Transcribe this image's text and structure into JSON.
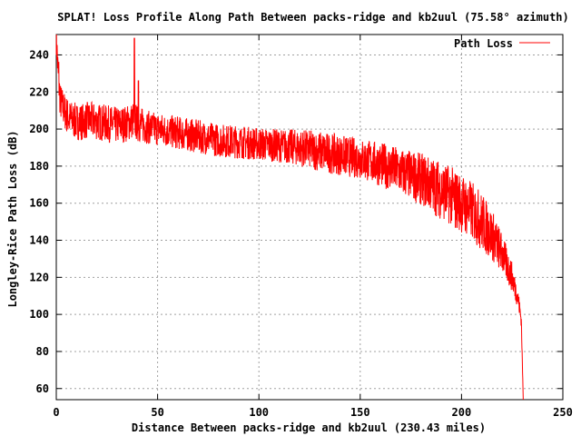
{
  "chart_data": {
    "type": "line",
    "title": "SPLAT! Loss Profile Along Path Between packs-ridge and kb2uul (75.58° azimuth)",
    "xlabel": "Distance Between packs-ridge and kb2uul (230.43 miles)",
    "ylabel": "Longley-Rice Path Loss (dB)",
    "xlim": [
      0,
      250
    ],
    "ylim": [
      54,
      251
    ],
    "x_ticks": [
      "0",
      "50",
      "100",
      "150",
      "200",
      "250"
    ],
    "y_ticks": [
      "60",
      "80",
      "100",
      "120",
      "140",
      "160",
      "180",
      "200",
      "220",
      "240"
    ],
    "grid": true,
    "legend_position": "top-right",
    "series": [
      {
        "name": "Path Loss",
        "color": "#ff0000",
        "x": [
          0,
          1,
          2,
          4,
          6,
          8,
          10,
          13,
          16,
          20,
          25,
          30,
          35,
          38,
          40,
          45,
          50,
          55,
          60,
          65,
          70,
          80,
          90,
          100,
          110,
          120,
          130,
          140,
          150,
          160,
          170,
          180,
          185,
          190,
          195,
          200,
          205,
          210,
          215,
          220,
          225,
          228,
          229.5,
          230.43
        ],
        "y": [
          250,
          228,
          215,
          210,
          206,
          205,
          204,
          204,
          205,
          204,
          203,
          202,
          203,
          205,
          203,
          201,
          200,
          199,
          198,
          197,
          196,
          194,
          193,
          192,
          191,
          190,
          188,
          186,
          184,
          181,
          177,
          173,
          170,
          167,
          164,
          160,
          156,
          150,
          143,
          133,
          120,
          108,
          97,
          55
        ],
        "noise": [
          10,
          10,
          10,
          10,
          10,
          10,
          10,
          10,
          10,
          10,
          10,
          10,
          10,
          10,
          10,
          9,
          9,
          9,
          9,
          9,
          9,
          9,
          9,
          9,
          9,
          10,
          11,
          11,
          11,
          12,
          13,
          14,
          15,
          16,
          16,
          16,
          16,
          16,
          14,
          11,
          8,
          5,
          4,
          0
        ],
        "spikes": [
          {
            "x": 38.5,
            "y": 249
          },
          {
            "x": 1.2,
            "y": 236
          },
          {
            "x": 40.5,
            "y": 226
          },
          {
            "x": 197,
            "y": 147
          }
        ]
      }
    ]
  }
}
